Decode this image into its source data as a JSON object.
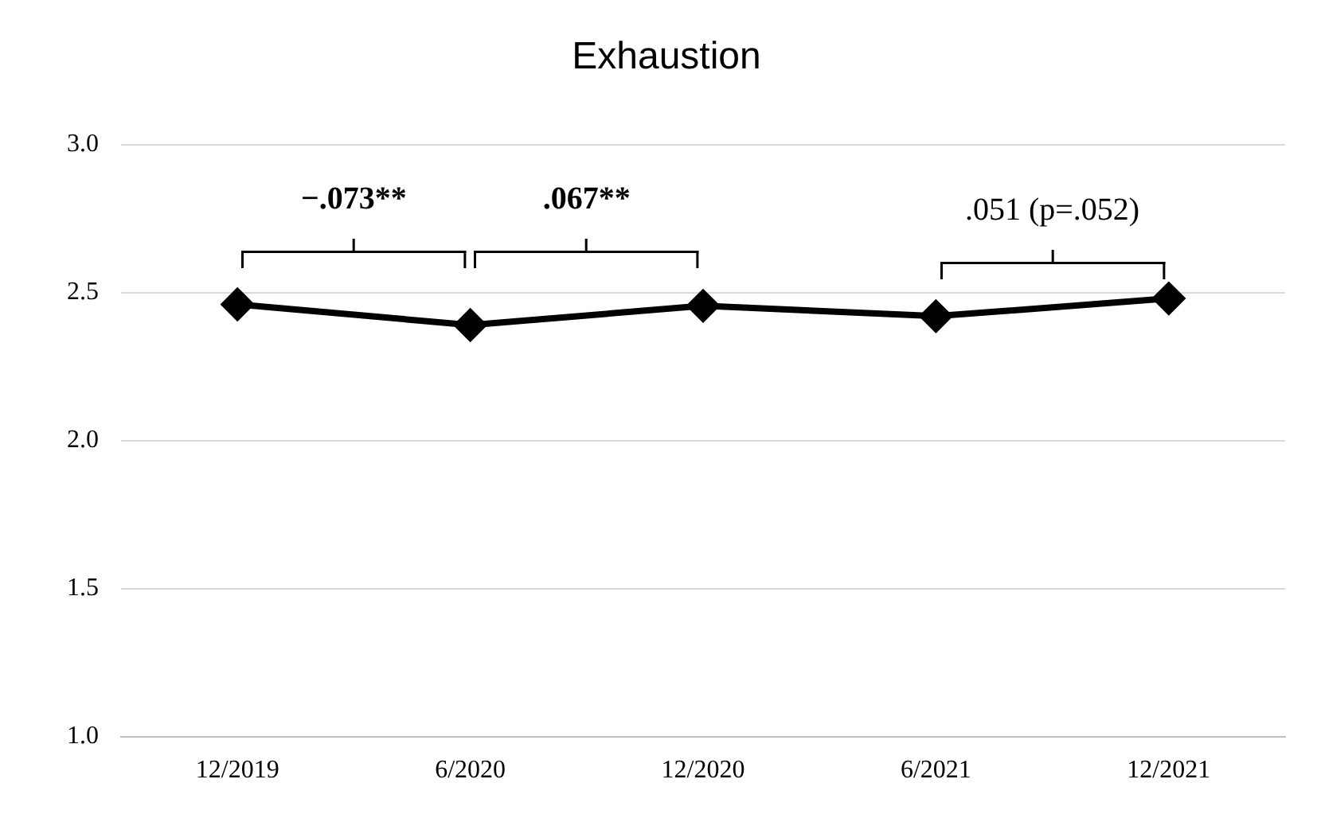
{
  "chart_data": {
    "type": "line",
    "title": "Exhaustion",
    "categories": [
      "12/2019",
      "6/2020",
      "12/2020",
      "6/2021",
      "12/2021"
    ],
    "series": [
      {
        "color": "#000000",
        "values": [
          2.46,
          2.39,
          2.455,
          2.42,
          2.48
        ]
      }
    ],
    "ylim": [
      1.0,
      3.0
    ],
    "yticks": [
      {
        "value": 1,
        "label": "1.0"
      },
      {
        "value": 1.5,
        "label": "1.5"
      },
      {
        "value": 2,
        "label": "2.0"
      },
      {
        "value": 2.5,
        "label": "2.5"
      },
      {
        "value": 3,
        "label": "3.0"
      }
    ],
    "grid": "y",
    "legend": false,
    "marker": "diamond",
    "line_style": "solid",
    "annotations": [
      "−.073**",
      ".067**",
      ".051 (p=.052)"
    ]
  }
}
